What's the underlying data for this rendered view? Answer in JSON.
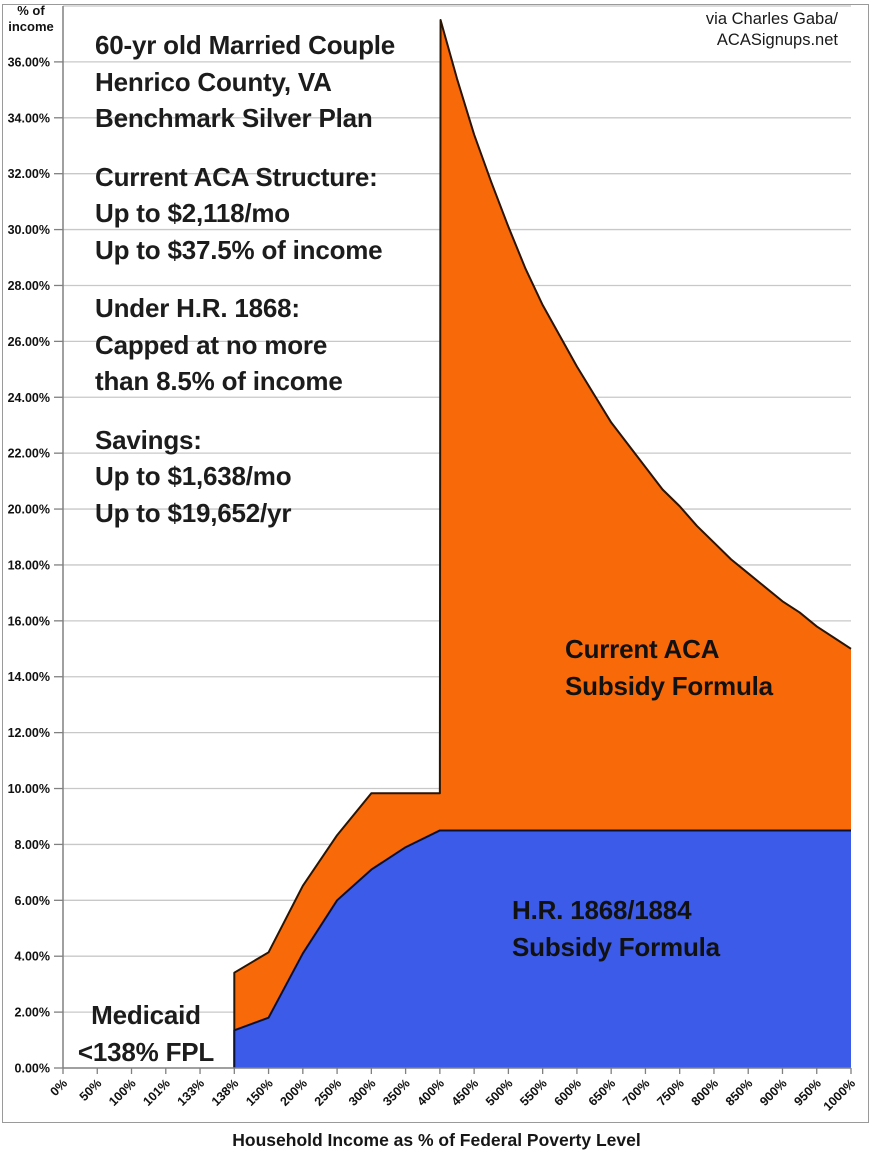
{
  "attribution": "via Charles Gaba/\nACASignups.net",
  "annotations": {
    "info_paragraphs": [
      "60-yr old Married Couple\nHenrico County, VA\nBenchmark Silver Plan",
      "Current ACA Structure:\nUp to $2,118/mo\nUp to $37.5% of income",
      "Under H.R. 1868:\nCapped at no more\nthan 8.5% of income",
      "Savings:\nUp to $1,638/mo\nUp to $19,652/yr"
    ],
    "medicaid_label": "Medicaid\n<138% FPL",
    "series_label_current": "Current ACA\nSubsidy Formula",
    "series_label_hr": "H.R. 1868/1884\nSubsidy Formula"
  },
  "chart_data": {
    "type": "area",
    "title": "",
    "xlabel": "Household Income as % of Federal Poverty Level",
    "ylabel": "% of\nincome",
    "x_categories": [
      0,
      50,
      100,
      101,
      133,
      138,
      150,
      200,
      250,
      300,
      350,
      400,
      450,
      500,
      550,
      600,
      650,
      700,
      750,
      800,
      850,
      900,
      950,
      1000
    ],
    "x_tick_labels": [
      "0%",
      "50%",
      "100%",
      "101%",
      "133%",
      "138%",
      "150%",
      "200%",
      "250%",
      "300%",
      "350%",
      "400%",
      "450%",
      "500%",
      "550%",
      "600%",
      "650%",
      "700%",
      "750%",
      "800%",
      "850%",
      "900%",
      "950%",
      "1000%"
    ],
    "y_ticks": [
      0,
      2,
      4,
      6,
      8,
      10,
      12,
      14,
      16,
      18,
      20,
      22,
      24,
      26,
      28,
      30,
      32,
      34,
      36
    ],
    "y_tick_labels": [
      "0.00%",
      "2.00%",
      "4.00%",
      "6.00%",
      "8.00%",
      "10.00%",
      "12.00%",
      "14.00%",
      "16.00%",
      "18.00%",
      "20.00%",
      "22.00%",
      "24.00%",
      "26.00%",
      "28.00%",
      "30.00%",
      "32.00%",
      "34.00%",
      "36.00%"
    ],
    "ylim": [
      0,
      38
    ],
    "grid": "horizontal",
    "legend": "in-plot text labels",
    "colors": {
      "grid": "#c8c8c8",
      "axis": "#808080",
      "text": "#1c1c1c"
    },
    "series": [
      {
        "name": "Current ACA Subsidy Formula",
        "fill": "#f8690a",
        "edge": "#2a1403",
        "points": [
          [
            138,
            3.41
          ],
          [
            150,
            4.14
          ],
          [
            200,
            6.52
          ],
          [
            250,
            8.33
          ],
          [
            300,
            9.83
          ],
          [
            350,
            9.83
          ],
          [
            400,
            9.83
          ],
          [
            401,
            37.5
          ],
          [
            425,
            35.4
          ],
          [
            450,
            33.4
          ],
          [
            475,
            31.7
          ],
          [
            500,
            30.1
          ],
          [
            525,
            28.6
          ],
          [
            550,
            27.3
          ],
          [
            575,
            26.2
          ],
          [
            600,
            25.1
          ],
          [
            625,
            24.1
          ],
          [
            650,
            23.1
          ],
          [
            675,
            22.3
          ],
          [
            700,
            21.5
          ],
          [
            725,
            20.7
          ],
          [
            750,
            20.1
          ],
          [
            775,
            19.4
          ],
          [
            800,
            18.8
          ],
          [
            825,
            18.2
          ],
          [
            850,
            17.7
          ],
          [
            875,
            17.2
          ],
          [
            900,
            16.7
          ],
          [
            925,
            16.3
          ],
          [
            950,
            15.8
          ],
          [
            975,
            15.4
          ],
          [
            1000,
            15.0
          ]
        ]
      },
      {
        "name": "H.R. 1868/1884 Subsidy Formula",
        "fill": "#3c5be8",
        "edge": "#0c1233",
        "points": [
          [
            138,
            1.35
          ],
          [
            150,
            1.8
          ],
          [
            200,
            4.1
          ],
          [
            250,
            6.0
          ],
          [
            300,
            7.1
          ],
          [
            350,
            7.9
          ],
          [
            400,
            8.5
          ],
          [
            450,
            8.5
          ],
          [
            500,
            8.5
          ],
          [
            550,
            8.5
          ],
          [
            600,
            8.5
          ],
          [
            650,
            8.5
          ],
          [
            700,
            8.5
          ],
          [
            750,
            8.5
          ],
          [
            800,
            8.5
          ],
          [
            850,
            8.5
          ],
          [
            900,
            8.5
          ],
          [
            950,
            8.5
          ],
          [
            1000,
            8.5
          ]
        ]
      }
    ]
  }
}
